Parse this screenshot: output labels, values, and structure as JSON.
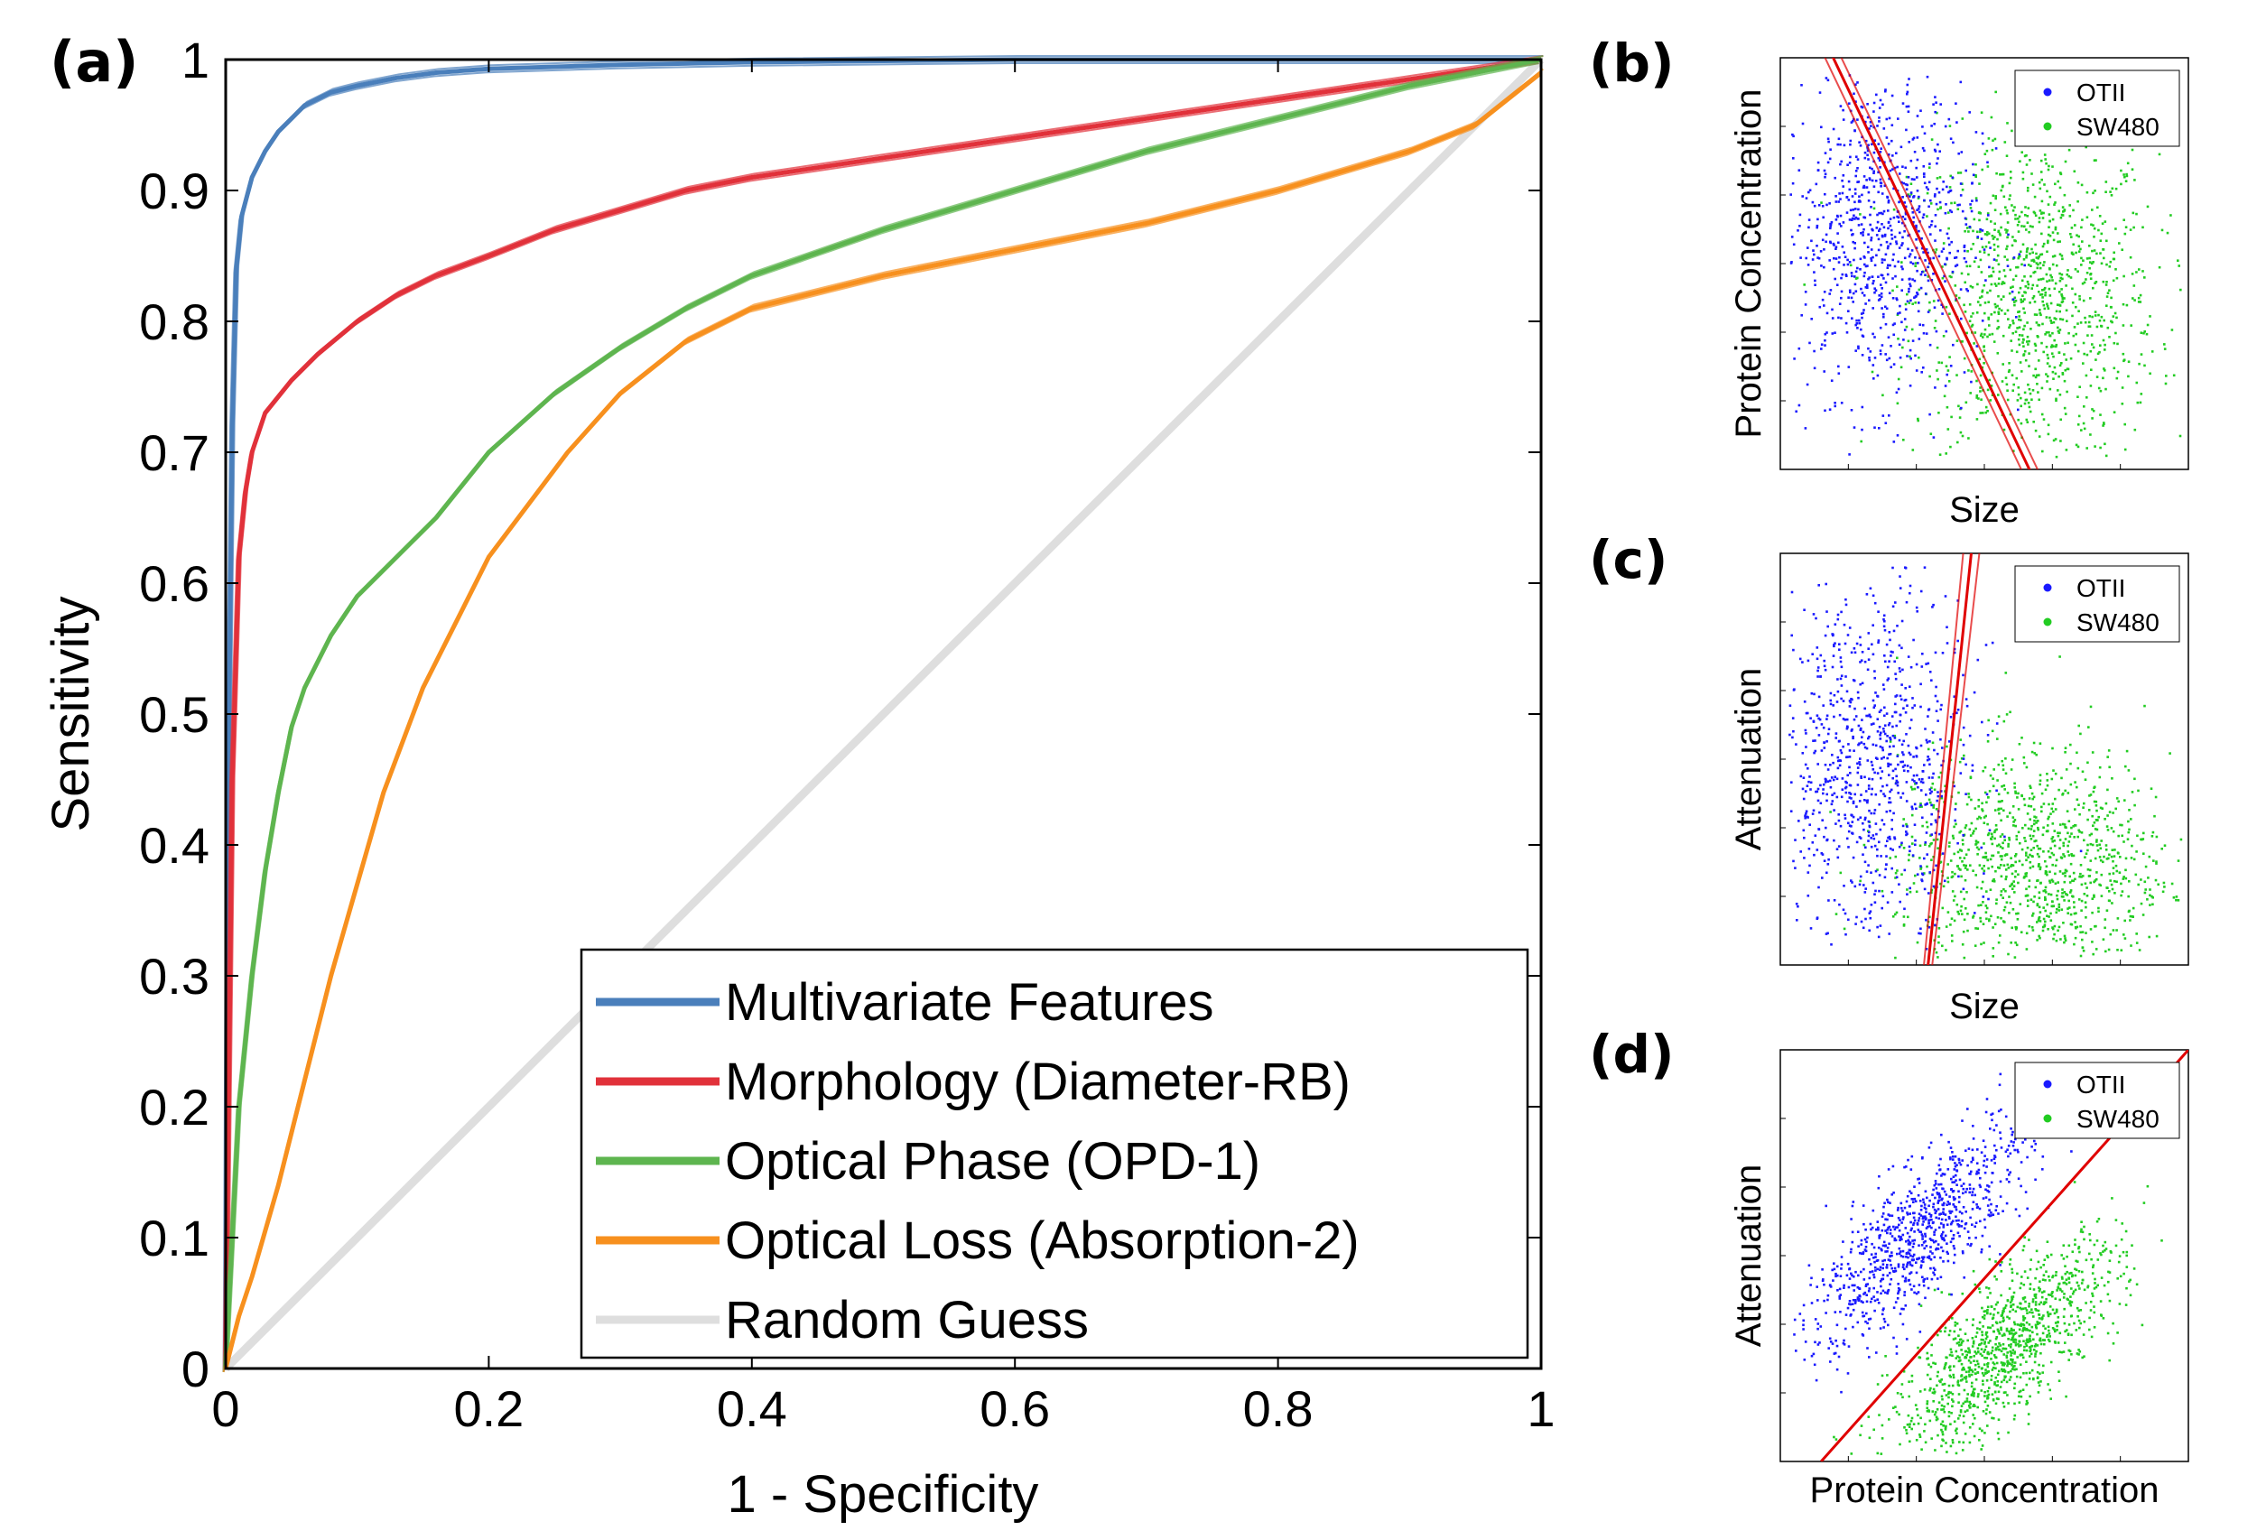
{
  "chart_data": [
    {
      "type": "line",
      "panel_label": "(a)",
      "xlabel": "1 - Specificity",
      "ylabel": "Sensitivity",
      "xlim": [
        0,
        1
      ],
      "ylim": [
        0,
        1
      ],
      "x_ticks": [
        "0",
        "0.2",
        "0.4",
        "0.6",
        "0.8",
        "1"
      ],
      "y_ticks": [
        "0",
        "0.1",
        "0.2",
        "0.3",
        "0.4",
        "0.5",
        "0.6",
        "0.7",
        "0.8",
        "0.9",
        "1"
      ],
      "grid": false,
      "legend_position": "bottom-right",
      "series": [
        {
          "name": "Multivariate Features",
          "color": "#4a7fbb",
          "x": [
            0,
            0.002,
            0.005,
            0.008,
            0.012,
            0.02,
            0.03,
            0.04,
            0.05,
            0.06,
            0.08,
            0.1,
            0.13,
            0.16,
            0.2,
            0.3,
            0.4,
            0.6,
            1
          ],
          "y": [
            0,
            0.45,
            0.72,
            0.84,
            0.88,
            0.91,
            0.93,
            0.945,
            0.955,
            0.965,
            0.975,
            0.98,
            0.986,
            0.99,
            0.993,
            0.996,
            0.998,
            1,
            1
          ]
        },
        {
          "name": "Morphology (Diameter-RB)",
          "color": "#e1313a",
          "x": [
            0,
            0.005,
            0.01,
            0.015,
            0.02,
            0.03,
            0.05,
            0.07,
            0.1,
            0.13,
            0.16,
            0.2,
            0.25,
            0.3,
            0.35,
            0.4,
            0.5,
            0.6,
            0.7,
            0.8,
            0.9,
            1
          ],
          "y": [
            0,
            0.45,
            0.62,
            0.67,
            0.7,
            0.73,
            0.755,
            0.775,
            0.8,
            0.82,
            0.835,
            0.85,
            0.87,
            0.885,
            0.9,
            0.91,
            0.925,
            0.94,
            0.955,
            0.97,
            0.985,
            1
          ]
        },
        {
          "name": "Optical Phase (OPD-1)",
          "color": "#5eb54f",
          "x": [
            0,
            0.005,
            0.01,
            0.02,
            0.03,
            0.04,
            0.05,
            0.06,
            0.08,
            0.1,
            0.13,
            0.16,
            0.2,
            0.25,
            0.3,
            0.35,
            0.4,
            0.5,
            0.6,
            0.7,
            0.8,
            0.9,
            1
          ],
          "y": [
            0,
            0.1,
            0.2,
            0.3,
            0.38,
            0.44,
            0.49,
            0.52,
            0.56,
            0.59,
            0.62,
            0.65,
            0.7,
            0.745,
            0.78,
            0.81,
            0.835,
            0.87,
            0.9,
            0.93,
            0.955,
            0.98,
            1
          ]
        },
        {
          "name": "Optical Loss (Absorption-2)",
          "color": "#f7901e",
          "x": [
            0,
            0.01,
            0.02,
            0.04,
            0.06,
            0.08,
            0.1,
            0.12,
            0.15,
            0.18,
            0.2,
            0.23,
            0.26,
            0.3,
            0.35,
            0.4,
            0.5,
            0.6,
            0.7,
            0.8,
            0.9,
            0.95,
            1
          ],
          "y": [
            0,
            0.04,
            0.07,
            0.14,
            0.22,
            0.3,
            0.37,
            0.44,
            0.52,
            0.58,
            0.62,
            0.66,
            0.7,
            0.745,
            0.785,
            0.81,
            0.835,
            0.855,
            0.875,
            0.9,
            0.93,
            0.95,
            0.99
          ]
        },
        {
          "name": "Random Guess",
          "color": "#dedede",
          "x": [
            0,
            1
          ],
          "y": [
            0,
            1
          ]
        }
      ]
    },
    {
      "type": "scatter",
      "panel_label": "(b)",
      "xlabel": "Size",
      "ylabel": "Protein Concentration",
      "legend_position": "top-right",
      "series": [
        {
          "name": "OTII",
          "color": "#1a1aff"
        },
        {
          "name": "SW480",
          "color": "#22cc22"
        }
      ],
      "decision_line_color": "#e00000"
    },
    {
      "type": "scatter",
      "panel_label": "(c)",
      "xlabel": "Size",
      "ylabel": "Attenuation",
      "legend_position": "top-right",
      "series": [
        {
          "name": "OTII",
          "color": "#1a1aff"
        },
        {
          "name": "SW480",
          "color": "#22cc22"
        }
      ],
      "decision_line_color": "#e00000"
    },
    {
      "type": "scatter",
      "panel_label": "(d)",
      "xlabel": "Protein Concentration",
      "ylabel": "Attenuation",
      "legend_position": "top-right",
      "series": [
        {
          "name": "OTII",
          "color": "#1a1aff"
        },
        {
          "name": "SW480",
          "color": "#22cc22"
        }
      ],
      "decision_line_color": "#e00000"
    }
  ]
}
